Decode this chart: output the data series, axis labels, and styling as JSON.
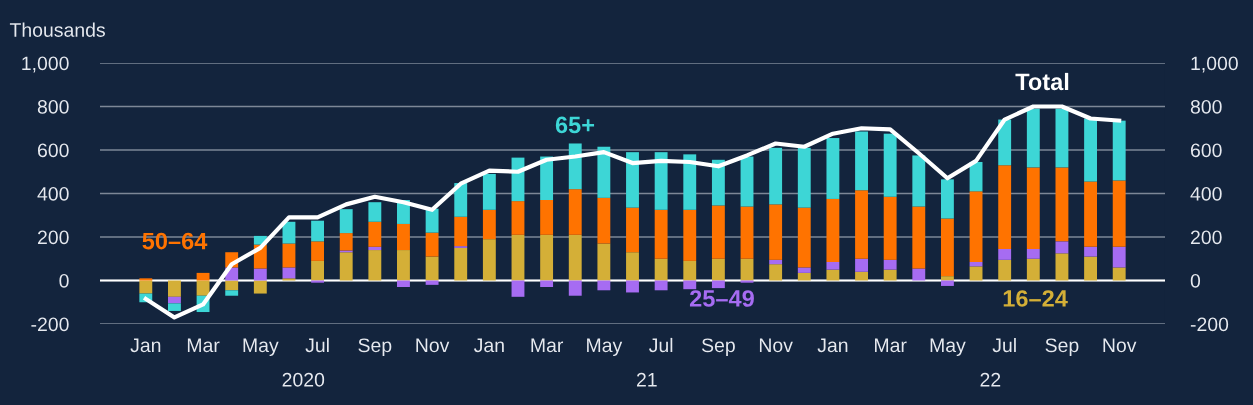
{
  "chart_data": {
    "type": "bar",
    "stacked": true,
    "ylabel": "Thousands",
    "categories": [
      "Jan",
      null,
      "Mar",
      null,
      "May",
      null,
      "Jul",
      null,
      "Sep",
      null,
      "Nov",
      null,
      "Jan",
      null,
      "Mar",
      null,
      "May",
      null,
      "Jul",
      null,
      "Sep",
      null,
      "Nov",
      null,
      "Jan",
      null,
      "Mar",
      null,
      "May",
      null,
      "Jul",
      null,
      "Sep",
      null,
      "Nov"
    ],
    "annotations": [
      "2020",
      "21",
      "22"
    ],
    "series": [
      {
        "name": "16–24",
        "color": "#d4af37",
        "values": [
          -60,
          -75,
          -70,
          -45,
          -60,
          10,
          90,
          130,
          140,
          140,
          110,
          150,
          190,
          210,
          210,
          210,
          170,
          130,
          100,
          90,
          100,
          100,
          75,
          35,
          50,
          40,
          50,
          0,
          20,
          65,
          95,
          100,
          125,
          110,
          60
        ]
      },
      {
        "name": "25–49",
        "color": "#a66cf2",
        "values": [
          0,
          -30,
          0,
          60,
          55,
          50,
          -10,
          8,
          15,
          -30,
          -20,
          8,
          0,
          -75,
          -30,
          -70,
          -45,
          -55,
          -45,
          -40,
          -35,
          -10,
          20,
          25,
          35,
          60,
          45,
          55,
          -25,
          20,
          50,
          45,
          55,
          45,
          95
        ]
      },
      {
        "name": "50–64",
        "color": "#ff7300",
        "values": [
          10,
          0,
          35,
          70,
          110,
          110,
          90,
          80,
          115,
          120,
          110,
          135,
          135,
          155,
          160,
          210,
          210,
          205,
          225,
          235,
          245,
          240,
          255,
          275,
          290,
          315,
          290,
          285,
          265,
          325,
          385,
          375,
          340,
          300,
          305
        ]
      },
      {
        "name": "65+",
        "color": "#3dd6d6",
        "values": [
          -40,
          -35,
          -75,
          -25,
          40,
          100,
          95,
          110,
          90,
          110,
          110,
          155,
          165,
          200,
          200,
          210,
          235,
          255,
          265,
          255,
          210,
          230,
          260,
          275,
          280,
          270,
          290,
          235,
          180,
          135,
          210,
          270,
          270,
          290,
          275
        ]
      },
      {
        "name": "Total",
        "type": "line",
        "color": "#ffffff",
        "values": [
          -85,
          -170,
          -110,
          75,
          150,
          290,
          290,
          350,
          385,
          360,
          325,
          445,
          505,
          500,
          555,
          570,
          590,
          540,
          550,
          545,
          525,
          575,
          630,
          615,
          675,
          700,
          695,
          585,
          470,
          550,
          740,
          800,
          800,
          745,
          735
        ]
      }
    ],
    "ylim": [
      -200,
      1000
    ],
    "yticks": [
      -200,
      0,
      200,
      400,
      600,
      800,
      {
        "value": 1000,
        "label": "1,000"
      }
    ],
    "y2lim": [
      -200,
      1000
    ],
    "y2ticks": [
      -200,
      0,
      200,
      400,
      600,
      800,
      {
        "value": 1000,
        "label": "1,000"
      }
    ],
    "ref_lines": [
      {
        "axis": "y",
        "value": 0,
        "color": "#ffffff"
      }
    ],
    "grid": "y",
    "legend": false,
    "marker": "none",
    "line_style": "solid"
  }
}
